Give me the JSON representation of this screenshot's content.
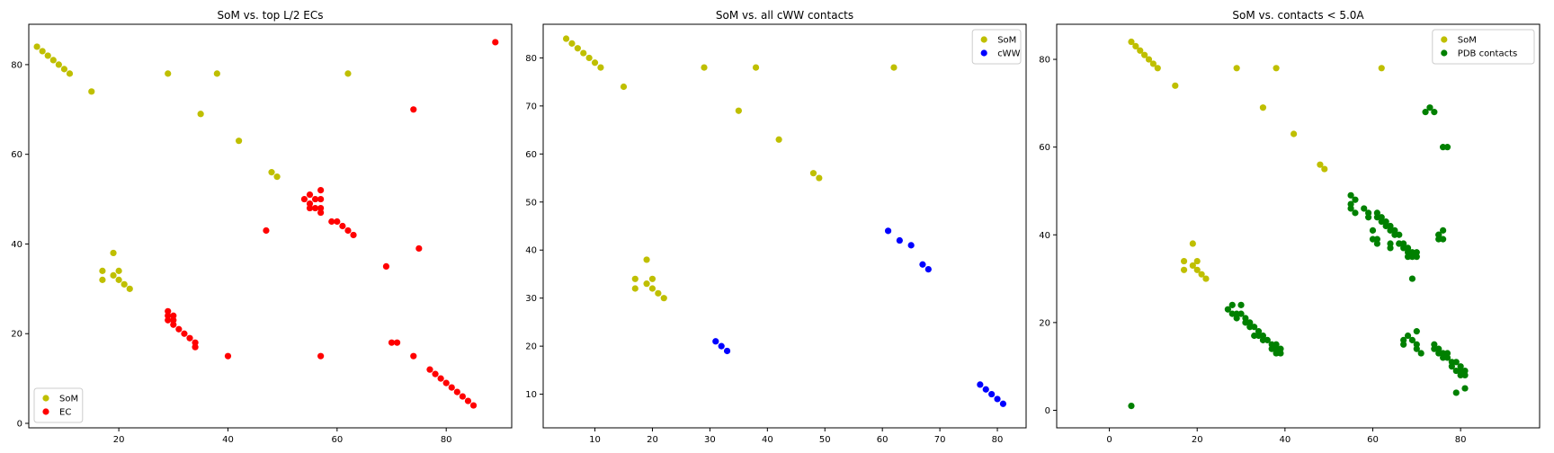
{
  "chart_data": [
    {
      "type": "scatter",
      "title": "SoM vs. top L/2 ECs",
      "xlabel": "",
      "ylabel": "",
      "xlim": [
        3.5,
        92
      ],
      "ylim": [
        -1,
        89
      ],
      "xticks": [
        20,
        40,
        60,
        80
      ],
      "yticks": [
        0,
        20,
        40,
        60,
        80
      ],
      "legend": "lower-left",
      "series": [
        {
          "name": "SoM",
          "color": "#bfbf00",
          "x": [
            5,
            6,
            7,
            8,
            9,
            10,
            11,
            15,
            29,
            38,
            62,
            35,
            42,
            48,
            49,
            17,
            17,
            19,
            19,
            20,
            20,
            21,
            22
          ],
          "y": [
            84,
            83,
            82,
            81,
            80,
            79,
            78,
            74,
            78,
            78,
            78,
            69,
            63,
            56,
            55,
            34,
            32,
            38,
            33,
            34,
            32,
            31,
            30
          ]
        },
        {
          "name": "EC",
          "color": "#ff0000",
          "x": [
            89,
            74,
            54,
            55,
            55,
            56,
            56,
            55,
            57,
            57,
            57,
            57,
            59,
            60,
            61,
            62,
            63,
            47,
            75,
            69,
            29,
            29,
            29,
            30,
            30,
            30,
            31,
            32,
            33,
            34,
            34,
            40,
            57,
            70,
            71,
            74,
            77,
            78,
            79,
            80,
            81,
            82,
            83,
            84,
            85
          ],
          "y": [
            85,
            70,
            50,
            51,
            49,
            50,
            48,
            48,
            52,
            50,
            48,
            47,
            45,
            45,
            44,
            43,
            42,
            43,
            39,
            35,
            25,
            24,
            23,
            24,
            23,
            22,
            21,
            20,
            19,
            18,
            17,
            15,
            15,
            18,
            18,
            15,
            12,
            11,
            10,
            9,
            8,
            7,
            6,
            5,
            4
          ]
        }
      ]
    },
    {
      "type": "scatter",
      "title": "SoM vs. all cWW contacts",
      "xlabel": "",
      "ylabel": "",
      "xlim": [
        1,
        85
      ],
      "ylim": [
        3,
        87
      ],
      "xticks": [
        10,
        20,
        30,
        40,
        50,
        60,
        70,
        80
      ],
      "yticks": [
        10,
        20,
        30,
        40,
        50,
        60,
        70,
        80
      ],
      "legend": "upper-right",
      "series": [
        {
          "name": "SoM",
          "color": "#bfbf00",
          "x": [
            5,
            6,
            7,
            8,
            9,
            10,
            11,
            15,
            29,
            38,
            62,
            35,
            42,
            48,
            49,
            17,
            17,
            19,
            19,
            20,
            20,
            21,
            22
          ],
          "y": [
            84,
            83,
            82,
            81,
            80,
            79,
            78,
            74,
            78,
            78,
            78,
            69,
            63,
            56,
            55,
            34,
            32,
            38,
            33,
            34,
            32,
            31,
            30
          ]
        },
        {
          "name": "cWW",
          "color": "#0000ff",
          "x": [
            61,
            63,
            65,
            67,
            68,
            31,
            32,
            33,
            77,
            78,
            79,
            80,
            81
          ],
          "y": [
            44,
            42,
            41,
            37,
            36,
            21,
            20,
            19,
            12,
            11,
            10,
            9,
            8
          ]
        }
      ]
    },
    {
      "type": "scatter",
      "title": "SoM vs. contacts < 5.0A",
      "xlabel": "",
      "ylabel": "",
      "xlim": [
        -12,
        98
      ],
      "ylim": [
        -4,
        88
      ],
      "xticks": [
        0,
        20,
        40,
        60,
        80
      ],
      "yticks": [
        0,
        20,
        40,
        60,
        80
      ],
      "legend": "upper-right",
      "series": [
        {
          "name": "SoM",
          "color": "#bfbf00",
          "x": [
            5,
            6,
            7,
            8,
            9,
            10,
            11,
            15,
            29,
            38,
            62,
            35,
            42,
            48,
            49,
            17,
            17,
            19,
            19,
            20,
            20,
            21,
            22
          ],
          "y": [
            84,
            83,
            82,
            81,
            80,
            79,
            78,
            74,
            78,
            78,
            78,
            69,
            63,
            56,
            55,
            34,
            32,
            38,
            33,
            34,
            32,
            31,
            30
          ]
        },
        {
          "name": "PDB contacts",
          "color": "#008000",
          "x": [
            72,
            73,
            74,
            75,
            76,
            77,
            75,
            75,
            76,
            76,
            55,
            55,
            56,
            56,
            55,
            58,
            59,
            59,
            61,
            61,
            62,
            62,
            63,
            63,
            64,
            64,
            65,
            65,
            66,
            66,
            67,
            67,
            68,
            68,
            68,
            69,
            69,
            70,
            70,
            69,
            60,
            60,
            61,
            61,
            64,
            64,
            66,
            67,
            70,
            27,
            28,
            28,
            29,
            30,
            29,
            30,
            31,
            31,
            32,
            32,
            33,
            33,
            34,
            34,
            35,
            35,
            36,
            37,
            37,
            38,
            38,
            38,
            39,
            39,
            67,
            68,
            69,
            70,
            70,
            71,
            74,
            74,
            75,
            75,
            76,
            76,
            77,
            77,
            78,
            78,
            79,
            79,
            80,
            80,
            80,
            81,
            81,
            79,
            81,
            5
          ],
          "y": [
            68,
            69,
            68,
            40,
            39,
            60,
            39,
            40,
            41,
            60,
            49,
            46,
            48,
            45,
            47,
            46,
            45,
            44,
            45,
            44,
            44,
            43,
            43,
            42,
            42,
            41,
            41,
            40,
            40,
            38,
            38,
            37,
            37,
            36,
            35,
            36,
            35,
            35,
            36,
            30,
            41,
            39,
            39,
            38,
            38,
            37,
            38,
            15,
            18,
            23,
            24,
            22,
            22,
            24,
            21,
            22,
            21,
            20,
            20,
            19,
            19,
            17,
            18,
            17,
            17,
            16,
            16,
            15,
            14,
            15,
            14,
            13,
            14,
            13,
            16,
            17,
            16,
            15,
            14,
            13,
            15,
            14,
            14,
            13,
            13,
            12,
            13,
            12,
            11,
            10,
            11,
            9,
            10,
            9,
            8,
            8,
            9,
            4,
            5,
            1
          ]
        }
      ]
    }
  ]
}
